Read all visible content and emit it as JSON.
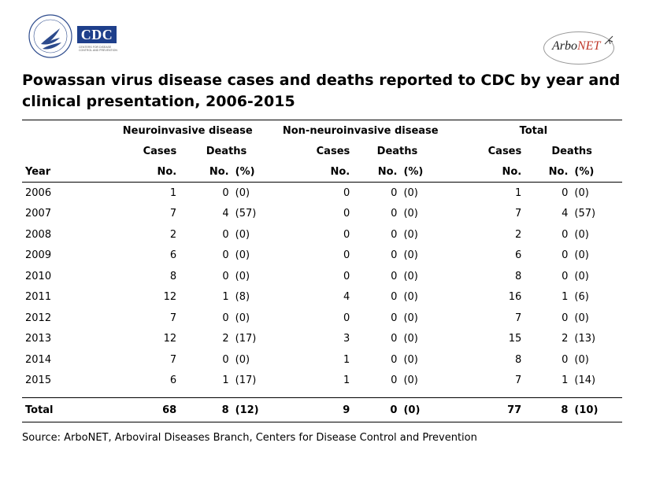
{
  "logos": {
    "cdc_text": "CDC",
    "cdc_tagline": "CENTERS FOR DISEASE CONTROL AND PREVENTION",
    "arbonet_prefix": "Arbo",
    "arbonet_suffix": "NET"
  },
  "title": "Powassan virus disease cases and deaths reported to CDC by year and clinical presentation, 2006-2015",
  "header": {
    "groups": [
      "Neuroinvasive disease",
      "Non-neuroinvasive disease",
      "Total"
    ],
    "cases": "Cases",
    "deaths": "Deaths",
    "year": "Year",
    "no": "No.",
    "pct": "(%)"
  },
  "rows": [
    {
      "year": "2006",
      "n_cases": "1",
      "n_deaths": "0",
      "n_pct": "(0)",
      "x_cases": "0",
      "x_deaths": "0",
      "x_pct": "(0)",
      "t_cases": "1",
      "t_deaths": "0",
      "t_pct": "(0)"
    },
    {
      "year": "2007",
      "n_cases": "7",
      "n_deaths": "4",
      "n_pct": "(57)",
      "x_cases": "0",
      "x_deaths": "0",
      "x_pct": "(0)",
      "t_cases": "7",
      "t_deaths": "4",
      "t_pct": "(57)"
    },
    {
      "year": "2008",
      "n_cases": "2",
      "n_deaths": "0",
      "n_pct": "(0)",
      "x_cases": "0",
      "x_deaths": "0",
      "x_pct": "(0)",
      "t_cases": "2",
      "t_deaths": "0",
      "t_pct": "(0)"
    },
    {
      "year": "2009",
      "n_cases": "6",
      "n_deaths": "0",
      "n_pct": "(0)",
      "x_cases": "0",
      "x_deaths": "0",
      "x_pct": "(0)",
      "t_cases": "6",
      "t_deaths": "0",
      "t_pct": "(0)"
    },
    {
      "year": "2010",
      "n_cases": "8",
      "n_deaths": "0",
      "n_pct": "(0)",
      "x_cases": "0",
      "x_deaths": "0",
      "x_pct": "(0)",
      "t_cases": "8",
      "t_deaths": "0",
      "t_pct": "(0)"
    },
    {
      "year": "2011",
      "n_cases": "12",
      "n_deaths": "1",
      "n_pct": "(8)",
      "x_cases": "4",
      "x_deaths": "0",
      "x_pct": "(0)",
      "t_cases": "16",
      "t_deaths": "1",
      "t_pct": "(6)"
    },
    {
      "year": "2012",
      "n_cases": "7",
      "n_deaths": "0",
      "n_pct": "(0)",
      "x_cases": "0",
      "x_deaths": "0",
      "x_pct": "(0)",
      "t_cases": "7",
      "t_deaths": "0",
      "t_pct": "(0)"
    },
    {
      "year": "2013",
      "n_cases": "12",
      "n_deaths": "2",
      "n_pct": "(17)",
      "x_cases": "3",
      "x_deaths": "0",
      "x_pct": "(0)",
      "t_cases": "15",
      "t_deaths": "2",
      "t_pct": "(13)"
    },
    {
      "year": "2014",
      "n_cases": "7",
      "n_deaths": "0",
      "n_pct": "(0)",
      "x_cases": "1",
      "x_deaths": "0",
      "x_pct": "(0)",
      "t_cases": "8",
      "t_deaths": "0",
      "t_pct": "(0)"
    },
    {
      "year": "2015",
      "n_cases": "6",
      "n_deaths": "1",
      "n_pct": "(17)",
      "x_cases": "1",
      "x_deaths": "0",
      "x_pct": "(0)",
      "t_cases": "7",
      "t_deaths": "1",
      "t_pct": "(14)"
    }
  ],
  "total": {
    "year": "Total",
    "n_cases": "68",
    "n_deaths": "8",
    "n_pct": "(12)",
    "x_cases": "9",
    "x_deaths": "0",
    "x_pct": "(0)",
    "t_cases": "77",
    "t_deaths": "8",
    "t_pct": "(10)"
  },
  "source": "Source: ArboNET, Arboviral Diseases Branch, Centers for Disease Control and Prevention",
  "colors": {
    "cdc_blue": "#1e3f8b",
    "net_red": "#c0392b"
  }
}
